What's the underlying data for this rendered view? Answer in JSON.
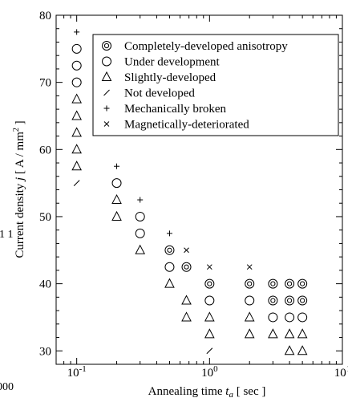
{
  "chart_data": {
    "type": "scatter",
    "xlabel": "Annealing time",
    "xlabel_symbol": "t",
    "xlabel_sub": "a",
    "xlabel_unit": "[ sec ]",
    "ylabel": "Current density",
    "ylabel_symbol": "j",
    "ylabel_unit_pre": "[ A / mm",
    "ylabel_unit_sup": "2",
    "ylabel_unit_post": " ]",
    "x_scale": "log",
    "xlim": [
      0.07,
      10
    ],
    "ylim": [
      28,
      80
    ],
    "x_ticks": [
      {
        "v": 0.1,
        "base": "10",
        "exp": "-1"
      },
      {
        "v": 1,
        "base": "10",
        "exp": "0"
      },
      {
        "v": 10,
        "base": "10",
        "exp": "1"
      }
    ],
    "y_ticks": [
      30,
      40,
      50,
      60,
      70,
      80
    ],
    "grid": false,
    "legend_position": "top-right",
    "series": [
      {
        "name": "Completely-developed anisotropy",
        "marker": "double-circle",
        "points": [
          [
            0.5,
            45
          ],
          [
            0.67,
            42.5
          ],
          [
            1,
            40
          ],
          [
            2,
            40
          ],
          [
            3,
            40
          ],
          [
            3,
            37.5
          ],
          [
            4,
            40
          ],
          [
            4,
            37.5
          ],
          [
            5,
            40
          ],
          [
            5,
            37.5
          ]
        ]
      },
      {
        "name": "Under development",
        "marker": "circle",
        "points": [
          [
            0.1,
            75
          ],
          [
            0.1,
            72.5
          ],
          [
            0.1,
            70
          ],
          [
            0.2,
            55
          ],
          [
            0.3,
            50
          ],
          [
            0.3,
            47.5
          ],
          [
            0.5,
            42.5
          ],
          [
            1,
            37.5
          ],
          [
            2,
            37.5
          ],
          [
            3,
            35
          ],
          [
            4,
            35
          ],
          [
            5,
            35
          ]
        ]
      },
      {
        "name": "Slightly-developed",
        "marker": "triangle",
        "points": [
          [
            0.1,
            67.5
          ],
          [
            0.1,
            65
          ],
          [
            0.1,
            62.5
          ],
          [
            0.1,
            60
          ],
          [
            0.1,
            57.5
          ],
          [
            0.2,
            52.5
          ],
          [
            0.2,
            50
          ],
          [
            0.3,
            45
          ],
          [
            0.5,
            40
          ],
          [
            0.67,
            37.5
          ],
          [
            0.67,
            35
          ],
          [
            1,
            35
          ],
          [
            1,
            32.5
          ],
          [
            2,
            35
          ],
          [
            2,
            32.5
          ],
          [
            3,
            32.5
          ],
          [
            4,
            32.5
          ],
          [
            4,
            30
          ],
          [
            5,
            32.5
          ],
          [
            5,
            30
          ]
        ]
      },
      {
        "name": "Not developed",
        "marker": "slash",
        "points": [
          [
            0.1,
            55
          ],
          [
            1,
            30
          ]
        ]
      },
      {
        "name": "Mechanically broken",
        "marker": "plus",
        "points": [
          [
            0.1,
            77.5
          ],
          [
            0.2,
            57.5
          ],
          [
            0.3,
            52.5
          ],
          [
            0.5,
            47.5
          ]
        ]
      },
      {
        "name": "Magnetically-deteriorated",
        "marker": "cross",
        "points": [
          [
            0.67,
            45
          ],
          [
            1,
            42.5
          ],
          [
            2,
            42.5
          ]
        ]
      }
    ]
  },
  "edge_fragments": {
    "left_mid": "1 1",
    "left_bottom": "000"
  }
}
